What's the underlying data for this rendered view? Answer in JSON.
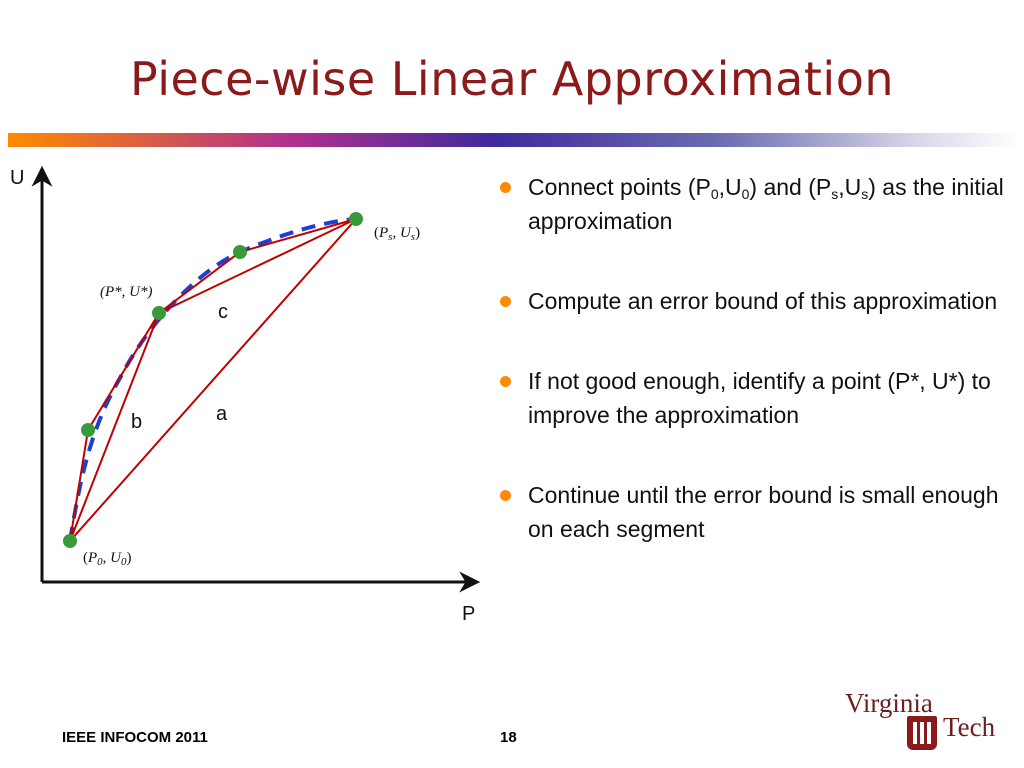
{
  "slide": {
    "title": "Piece-wise Linear Approximation",
    "footer": "IEEE INFOCOM 2011",
    "page_number": "18",
    "logo_text": "Virginia Tech",
    "accent_colors": {
      "title": "#8b1a1a",
      "bullet": "#ff8a00",
      "curve": "#1f3fd0",
      "segments": "#c00000",
      "points": "#3a9a3a"
    }
  },
  "diagram": {
    "axis_x_label": "P",
    "axis_y_label": "U",
    "segment_labels": {
      "a": "a",
      "b": "b",
      "c": "c"
    },
    "point_labels": {
      "p0": {
        "open": "(",
        "sym1": "P",
        "sub1": "0",
        "sep": ", ",
        "sym2": "U",
        "sub2": "0",
        "close": ")"
      },
      "pstar": "(P*, U*)",
      "ps": {
        "open": "(",
        "sym1": "P",
        "sub1": "s",
        "sep": ", ",
        "sym2": "U",
        "sub2": "s",
        "close": ")"
      }
    }
  },
  "bullets": [
    {
      "t1": "Connect points (P",
      "s1": "0",
      "t2": ",U",
      "s2": "0",
      "t3": ") and (P",
      "s3": "s",
      "t4": ",U",
      "s4": "s",
      "t5": ") as the initial approximation"
    },
    {
      "text": "Compute an error bound of this approximation"
    },
    {
      "text": "If not good enough, identify a point (P*, U*) to improve the approximation"
    },
    {
      "text": "Continue until the error bound is small enough on each segment"
    }
  ]
}
